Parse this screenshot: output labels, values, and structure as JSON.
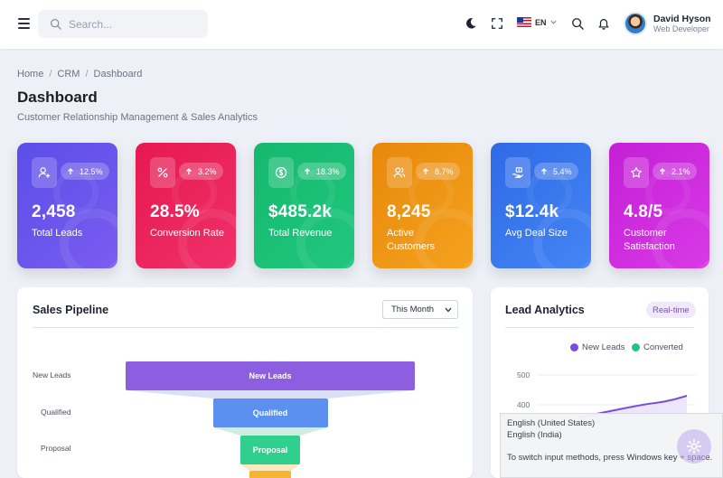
{
  "header": {
    "search_placeholder": "Search...",
    "language": "EN",
    "user": {
      "name": "David Hyson",
      "role": "Web Developer"
    }
  },
  "breadcrumb": [
    "Home",
    "CRM",
    "Dashboard"
  ],
  "page": {
    "title": "Dashboard",
    "subtitle": "Customer Relationship Management & Sales Analytics"
  },
  "stats": [
    {
      "value": "2,458",
      "label": "Total Leads",
      "change": "12.5%",
      "icon": "user-add-icon",
      "color_from": "#5b4ee8",
      "color_to": "#7a5cf0"
    },
    {
      "value": "28.5%",
      "label": "Conversion Rate",
      "change": "3.2%",
      "icon": "percent-icon",
      "color_from": "#e6194f",
      "color_to": "#f0306a"
    },
    {
      "value": "$485.2k",
      "label": "Total Revenue",
      "change": "18.3%",
      "icon": "dollar-icon",
      "color_from": "#14b86e",
      "color_to": "#21c77f"
    },
    {
      "value": "8,245",
      "label": "Active Customers",
      "change": "8.7%",
      "icon": "users-icon",
      "color_from": "#e8880c",
      "color_to": "#f4a21e"
    },
    {
      "value": "$12.4k",
      "label": "Avg Deal Size",
      "change": "5.4%",
      "icon": "hand-money-icon",
      "color_from": "#2e6ae6",
      "color_to": "#4585f5"
    },
    {
      "value": "4.8/5",
      "label": "Customer Satisfaction",
      "change": "2.1%",
      "icon": "star-icon",
      "color_from": "#c41fd6",
      "color_to": "#d83ae6"
    }
  ],
  "pipeline": {
    "title": "Sales Pipeline",
    "period": "This Month",
    "stages": [
      {
        "label": "New Leads",
        "bar_text": "New Leads",
        "color": "#8e5ee0"
      },
      {
        "label": "Qualified",
        "bar_text": "Qualified",
        "color": "#5b8ff0"
      },
      {
        "label": "Proposal",
        "bar_text": "Proposal",
        "color": "#2fcf8e"
      }
    ],
    "next_stage_color": "#f5b532"
  },
  "lead_analytics": {
    "title": "Lead Analytics",
    "badge": "Real-time",
    "legend": [
      {
        "name": "New Leads",
        "color": "#7c4ddb"
      },
      {
        "name": "Converted",
        "color": "#22c38a"
      }
    ],
    "y_ticks": [
      "500",
      "400"
    ]
  },
  "ime_popup": {
    "lines": [
      "English (United States)",
      "English (India)",
      "To switch input methods, press Windows key + space."
    ]
  }
}
